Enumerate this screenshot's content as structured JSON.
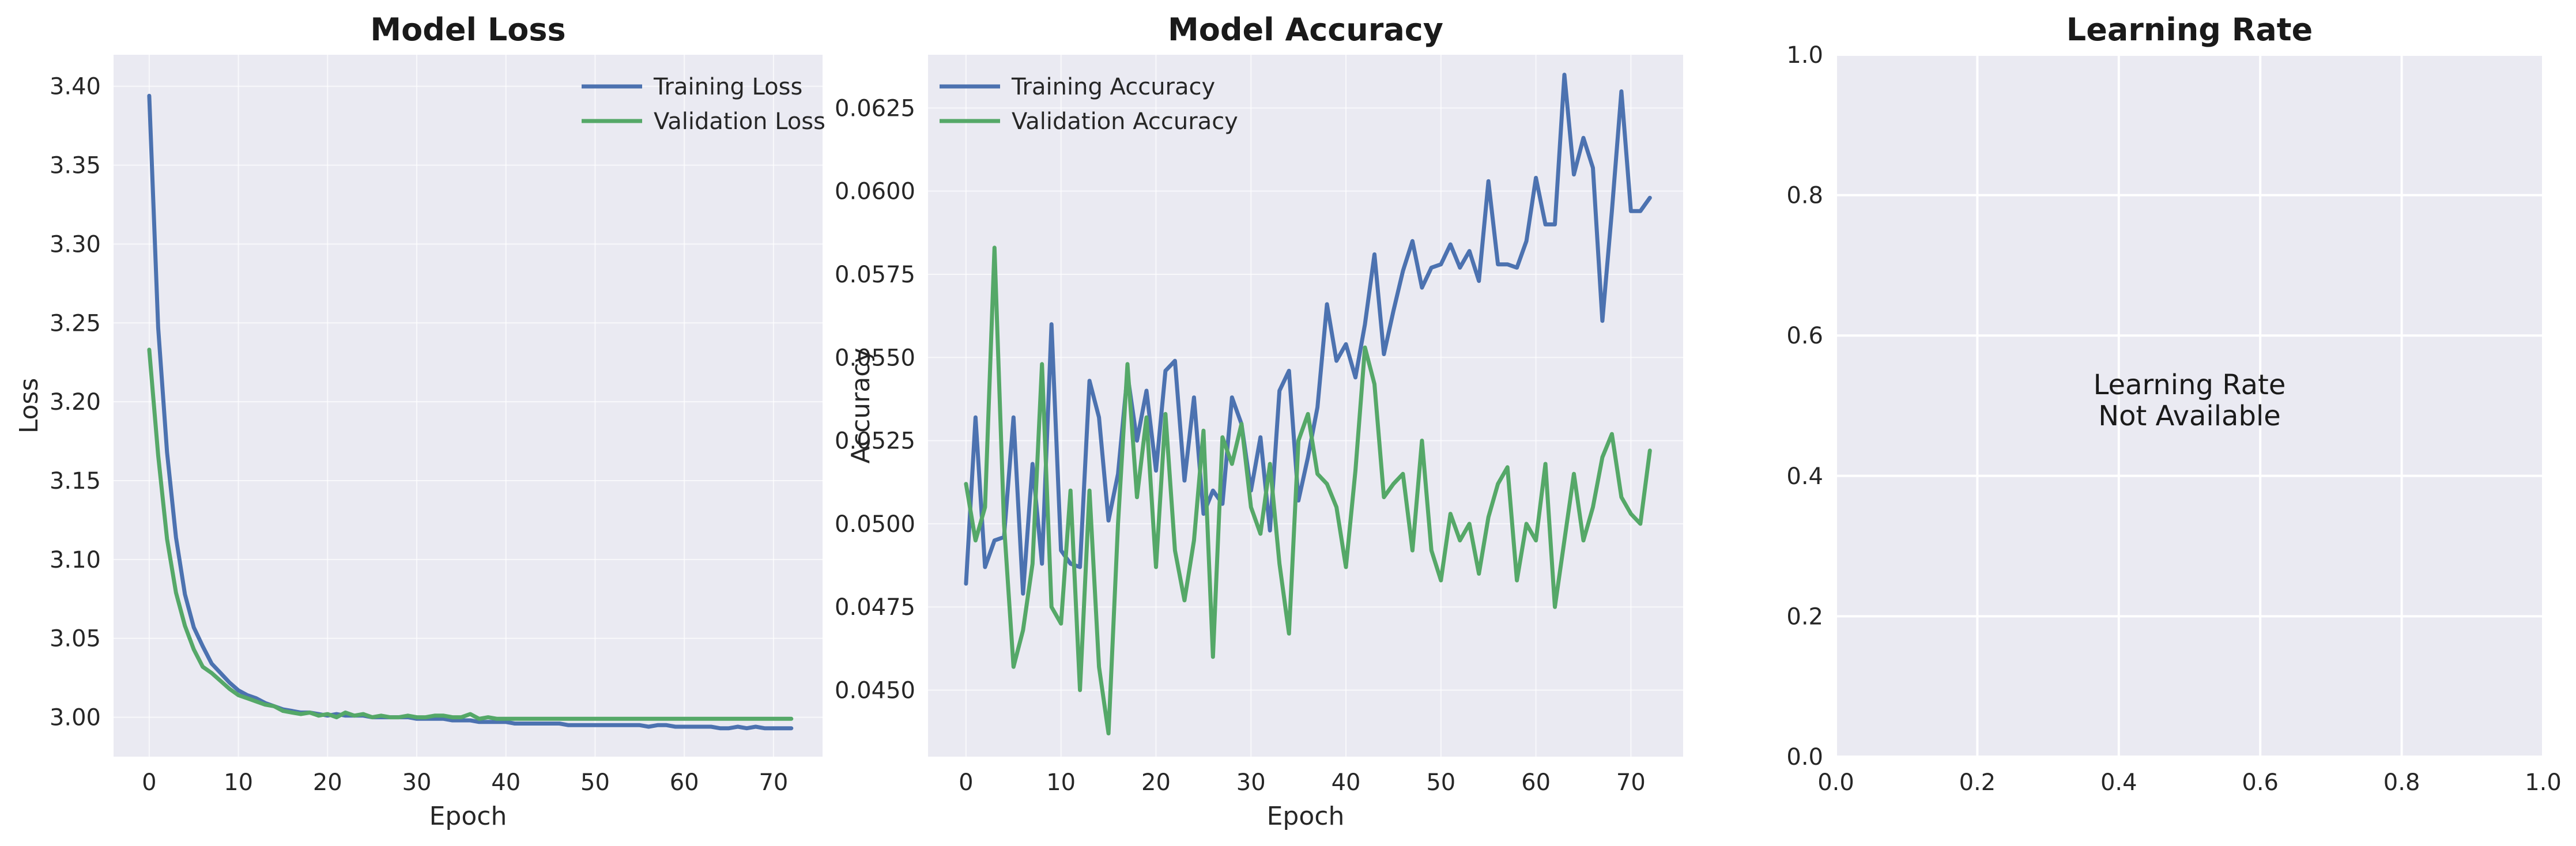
{
  "colors": {
    "training": "#4c72b0",
    "validation": "#55a868",
    "axes_bg": "#eaeaf2",
    "grid": "#ffffff"
  },
  "chart_data": [
    {
      "type": "line",
      "title": "Model Loss",
      "xlabel": "Epoch",
      "ylabel": "Loss",
      "xlim": [
        -4,
        75.5
      ],
      "ylim": [
        2.975,
        3.42
      ],
      "xticks": [
        0,
        10,
        20,
        30,
        40,
        50,
        60,
        70
      ],
      "yticks": [
        3.0,
        3.05,
        3.1,
        3.15,
        3.2,
        3.25,
        3.3,
        3.35,
        3.4
      ],
      "ytick_decimals": 2,
      "grid": true,
      "legend": "top-right",
      "series": [
        {
          "name": "Training Loss",
          "color": "#4c72b0",
          "x_start": 0,
          "values": [
            3.394,
            3.247,
            3.168,
            3.114,
            3.078,
            3.057,
            3.045,
            3.034,
            3.028,
            3.022,
            3.017,
            3.014,
            3.012,
            3.009,
            3.007,
            3.005,
            3.004,
            3.003,
            3.003,
            3.002,
            3.001,
            3.002,
            3.001,
            3.001,
            3.001,
            3.0,
            3.0,
            3.0,
            3.0,
            3.0,
            2.999,
            2.999,
            2.999,
            2.999,
            2.998,
            2.998,
            2.998,
            2.997,
            2.997,
            2.997,
            2.997,
            2.996,
            2.996,
            2.996,
            2.996,
            2.996,
            2.996,
            2.995,
            2.995,
            2.995,
            2.995,
            2.995,
            2.995,
            2.995,
            2.995,
            2.995,
            2.994,
            2.995,
            2.995,
            2.994,
            2.994,
            2.994,
            2.994,
            2.994,
            2.993,
            2.993,
            2.994,
            2.993,
            2.994,
            2.993,
            2.993,
            2.993,
            2.993
          ]
        },
        {
          "name": "Validation Loss",
          "color": "#55a868",
          "x_start": 0,
          "values": [
            3.233,
            3.166,
            3.113,
            3.079,
            3.058,
            3.043,
            3.032,
            3.028,
            3.023,
            3.018,
            3.014,
            3.012,
            3.01,
            3.008,
            3.007,
            3.004,
            3.003,
            3.002,
            3.003,
            3.001,
            3.002,
            3.0,
            3.003,
            3.001,
            3.002,
            3.0,
            3.001,
            3.0,
            3.0,
            3.001,
            3.0,
            3.0,
            3.001,
            3.001,
            3.0,
            3.0,
            3.002,
            2.999,
            3.0,
            2.999,
            2.999,
            2.999,
            2.999,
            2.999,
            2.999,
            2.999,
            2.999,
            2.999,
            2.999,
            2.999,
            2.999,
            2.999,
            2.999,
            2.999,
            2.999,
            2.999,
            2.999,
            2.999,
            2.999,
            2.999,
            2.999,
            2.999,
            2.999,
            2.999,
            2.999,
            2.999,
            2.999,
            2.999,
            2.999,
            2.999,
            2.999,
            2.999,
            2.999
          ]
        }
      ]
    },
    {
      "type": "line",
      "title": "Model Accuracy",
      "xlabel": "Epoch",
      "ylabel": "Accuracy",
      "xlim": [
        -4,
        75.5
      ],
      "ylim": [
        0.043,
        0.0641
      ],
      "xticks": [
        0,
        10,
        20,
        30,
        40,
        50,
        60,
        70
      ],
      "yticks": [
        0.045,
        0.0475,
        0.05,
        0.0525,
        0.055,
        0.0575,
        0.06,
        0.0625
      ],
      "ytick_decimals": 4,
      "grid": true,
      "legend": "top-left",
      "series": [
        {
          "name": "Training Accuracy",
          "color": "#4c72b0",
          "x_start": 0,
          "values": [
            0.0482,
            0.0532,
            0.0487,
            0.0495,
            0.0496,
            0.0532,
            0.0479,
            0.0518,
            0.0488,
            0.056,
            0.0492,
            0.0488,
            0.0487,
            0.0543,
            0.0532,
            0.0501,
            0.0515,
            0.0545,
            0.0525,
            0.054,
            0.0516,
            0.0546,
            0.0549,
            0.0513,
            0.0538,
            0.0503,
            0.051,
            0.0506,
            0.0538,
            0.053,
            0.051,
            0.0526,
            0.0498,
            0.054,
            0.0546,
            0.0507,
            0.052,
            0.0535,
            0.0566,
            0.0549,
            0.0554,
            0.0544,
            0.056,
            0.0581,
            0.0551,
            0.0564,
            0.0576,
            0.0585,
            0.0571,
            0.0577,
            0.0578,
            0.0584,
            0.0577,
            0.0582,
            0.0573,
            0.0603,
            0.0578,
            0.0578,
            0.0577,
            0.0585,
            0.0604,
            0.059,
            0.059,
            0.0635,
            0.0605,
            0.0616,
            0.0607,
            0.0561,
            0.0594,
            0.063,
            0.0594,
            0.0594,
            0.0598
          ]
        },
        {
          "name": "Validation Accuracy",
          "color": "#55a868",
          "x_start": 0,
          "values": [
            0.0512,
            0.0495,
            0.0505,
            0.0583,
            0.05,
            0.0457,
            0.0468,
            0.0488,
            0.0548,
            0.0475,
            0.047,
            0.051,
            0.045,
            0.051,
            0.0457,
            0.0437,
            0.05,
            0.0548,
            0.0508,
            0.0532,
            0.0487,
            0.0533,
            0.0492,
            0.0477,
            0.0495,
            0.0528,
            0.046,
            0.0526,
            0.0518,
            0.053,
            0.0505,
            0.0497,
            0.0518,
            0.0488,
            0.0467,
            0.0525,
            0.0533,
            0.0515,
            0.0512,
            0.0505,
            0.0487,
            0.0516,
            0.0553,
            0.0542,
            0.0508,
            0.0512,
            0.0515,
            0.0492,
            0.0525,
            0.0492,
            0.0483,
            0.0503,
            0.0495,
            0.05,
            0.0485,
            0.0502,
            0.0512,
            0.0517,
            0.0483,
            0.05,
            0.0495,
            0.0518,
            0.0475,
            0.0495,
            0.0515,
            0.0495,
            0.0505,
            0.052,
            0.0527,
            0.0508,
            0.0503,
            0.05,
            0.0522
          ]
        }
      ]
    },
    {
      "type": "line",
      "title": "Learning Rate",
      "xlabel": "",
      "ylabel": "",
      "xlim": [
        0,
        1
      ],
      "ylim": [
        0,
        1
      ],
      "xticks": [
        0.0,
        0.2,
        0.4,
        0.6,
        0.8,
        1.0
      ],
      "yticks": [
        0.0,
        0.2,
        0.4,
        0.6,
        0.8,
        1.0
      ],
      "ytick_decimals": 1,
      "xtick_decimals": 1,
      "grid": true,
      "legend": "none",
      "annotation": [
        "Learning Rate",
        "Not Available"
      ],
      "series": []
    }
  ]
}
